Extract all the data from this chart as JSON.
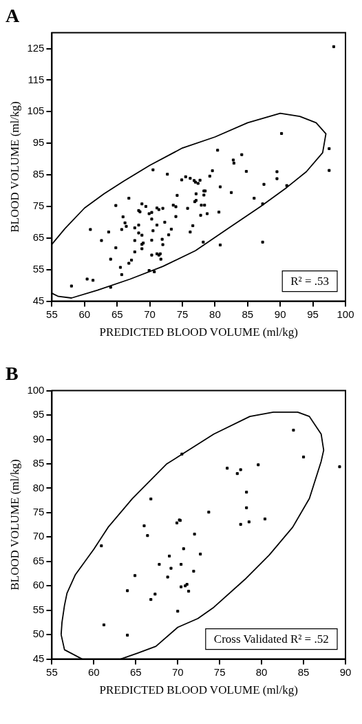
{
  "chart_data": [
    {
      "type": "scatter",
      "title": "A",
      "xlabel": "PREDICTED BLOOD VOLUME (ml/kg)",
      "ylabel": "BLOOD VOLUME (ml/kg)",
      "annotations": [
        "R² = .53"
      ],
      "xlim": [
        55,
        100
      ],
      "ylim": [
        45,
        130
      ],
      "xticks": [
        55,
        60,
        65,
        70,
        75,
        80,
        85,
        90,
        95,
        100
      ],
      "yticks": [
        45,
        55,
        65,
        75,
        85,
        95,
        105,
        115,
        125
      ],
      "marker": "square",
      "legend": false,
      "grid": false,
      "series": [
        {
          "color": "#000000",
          "x": [
            58.0,
            60.4,
            61.3,
            60.9,
            62.6,
            63.7,
            64.0,
            64.0,
            64.8,
            64.8,
            65.5,
            65.7,
            65.9,
            65.7,
            66.2,
            66.4,
            66.8,
            66.8,
            67.2,
            67.7,
            67.7,
            67.7,
            68.3,
            68.3,
            68.5,
            68.3,
            68.8,
            68.8,
            68.8,
            68.8,
            69.0,
            69.4,
            69.9,
            70.3,
            70.3,
            70.3,
            70.3,
            69.9,
            70.5,
            70.5,
            70.7,
            71.1,
            71.1,
            71.4,
            71.1,
            71.4,
            71.6,
            71.7,
            71.9,
            72.0,
            72.0,
            72.3,
            72.7,
            72.9,
            73.3,
            73.6,
            74.0,
            74.0,
            74.2,
            74.9,
            98.2,
            90.2,
            97.5,
            97.5,
            80.4,
            84.1,
            82.8,
            82.9,
            84.8,
            89.5,
            89.5,
            91.0,
            87.5,
            79.6,
            79.2,
            80.8,
            75.5,
            76.2,
            76.8,
            77.0,
            77.4,
            77.7,
            77.1,
            78.3,
            78.5,
            78.3,
            82.5,
            86.0,
            87.3,
            75.8,
            76.9,
            77.1,
            77.9,
            78.4,
            77.8,
            78.8,
            80.6,
            76.6,
            76.2,
            78.2,
            80.8,
            87.3
          ],
          "values": [
            49.8,
            52.0,
            51.6,
            67.7,
            64.2,
            66.9,
            58.3,
            49.4,
            61.9,
            75.3,
            55.7,
            53.4,
            71.7,
            67.7,
            69.8,
            68.7,
            77.6,
            57.0,
            58.0,
            60.6,
            64.2,
            68.2,
            69.1,
            73.7,
            73.3,
            66.6,
            75.8,
            65.9,
            61.6,
            63.0,
            63.4,
            75.0,
            72.7,
            73.1,
            71.0,
            64.3,
            59.6,
            54.7,
            86.6,
            67.3,
            54.3,
            69.1,
            74.5,
            74.0,
            60.0,
            59.6,
            60.0,
            58.3,
            64.6,
            62.9,
            74.4,
            70.0,
            85.2,
            66.0,
            67.8,
            75.4,
            74.9,
            71.8,
            78.5,
            83.4,
            125.6,
            98.1,
            93.3,
            86.4,
            92.8,
            91.4,
            89.7,
            88.7,
            86.1,
            86.0,
            83.8,
            81.6,
            82.0,
            86.3,
            84.6,
            81.2,
            84.4,
            83.9,
            83.2,
            82.7,
            82.3,
            83.3,
            79.0,
            79.9,
            79.9,
            78.6,
            79.4,
            77.6,
            75.8,
            74.4,
            76.5,
            76.9,
            75.4,
            75.4,
            72.2,
            72.7,
            73.2,
            68.9,
            66.9,
            63.7,
            62.8,
            63.7
          ]
        },
        {
          "type": "line",
          "color": "#000000",
          "marker": "none",
          "x": [
            55,
            57,
            60,
            63,
            66,
            70,
            75,
            80,
            85,
            90,
            93,
            95.5,
            97,
            96.5,
            94,
            91,
            87,
            82,
            77,
            72,
            67,
            62,
            58,
            56,
            55
          ],
          "values": [
            63,
            68,
            74.5,
            79,
            83,
            88,
            93.5,
            97,
            101.5,
            104.5,
            103.5,
            101.5,
            98,
            92,
            86,
            81,
            75,
            68,
            61,
            56,
            52,
            48.5,
            46,
            46.5,
            47.5
          ]
        }
      ]
    },
    {
      "type": "scatter",
      "title": "B",
      "xlabel": "PREDICTED BLOOD VOLUME (ml/kg)",
      "ylabel": "BLOOD VOLUME (ml/kg)",
      "annotations": [
        "Cross Validated R² = .52"
      ],
      "xlim": [
        55,
        90
      ],
      "ylim": [
        45,
        100
      ],
      "xticks": [
        55,
        60,
        65,
        70,
        75,
        80,
        85,
        90
      ],
      "yticks": [
        45,
        50,
        55,
        60,
        65,
        70,
        75,
        80,
        85,
        90,
        95,
        100
      ],
      "marker": "square",
      "legend": false,
      "grid": false,
      "series": [
        {
          "color": "#000000",
          "x": [
            60.9,
            61.2,
            64.0,
            64.0,
            64.9,
            66.0,
            66.4,
            66.8,
            66.8,
            67.3,
            67.8,
            68.8,
            69.0,
            69.2,
            69.9,
            70.2,
            70.3,
            70.4,
            70.4,
            70.0,
            70.5,
            70.7,
            71.1,
            83.8,
            85.0,
            89.3,
            75.9,
            77.1,
            77.5,
            79.6,
            78.2,
            78.2,
            77.5,
            78.5,
            80.4,
            73.7,
            72.0,
            72.7,
            71.9,
            70.9,
            71.3
          ],
          "values": [
            68.2,
            52.0,
            49.9,
            59.0,
            62.1,
            72.3,
            70.3,
            77.8,
            57.2,
            58.3,
            64.4,
            61.8,
            66.1,
            63.6,
            72.9,
            73.5,
            73.4,
            64.4,
            59.8,
            54.8,
            87.0,
            67.6,
            60.3,
            91.9,
            86.4,
            84.4,
            84.1,
            83.0,
            83.8,
            84.8,
            79.2,
            76.0,
            72.6,
            73.1,
            73.7,
            75.1,
            70.6,
            66.5,
            63.0,
            60.0,
            58.9
          ]
        },
        {
          "type": "line",
          "color": "#000000",
          "marker": "none",
          "x": [
            56.1,
            56.2,
            56.5,
            56.8,
            57.8,
            60,
            61.7,
            64.6,
            68.7,
            70,
            74.3,
            78.6,
            81.4,
            84.3,
            85.7,
            87.1,
            87.4,
            87.1,
            85.7,
            83.7,
            80.9,
            78,
            74.3,
            72.4,
            70,
            67.4,
            65.2,
            63.2,
            60.9,
            58.6,
            56.5,
            56.1
          ],
          "values": [
            50,
            52.5,
            56,
            58.5,
            62.3,
            67.5,
            72,
            77.9,
            85,
            86.4,
            91.1,
            94.7,
            95.6,
            95.6,
            94.7,
            91.1,
            87.8,
            85.5,
            77.9,
            72,
            66.3,
            61.3,
            55.6,
            53.3,
            51.5,
            47.6,
            46.2,
            45,
            null,
            45,
            46.9,
            50
          ]
        }
      ]
    }
  ]
}
